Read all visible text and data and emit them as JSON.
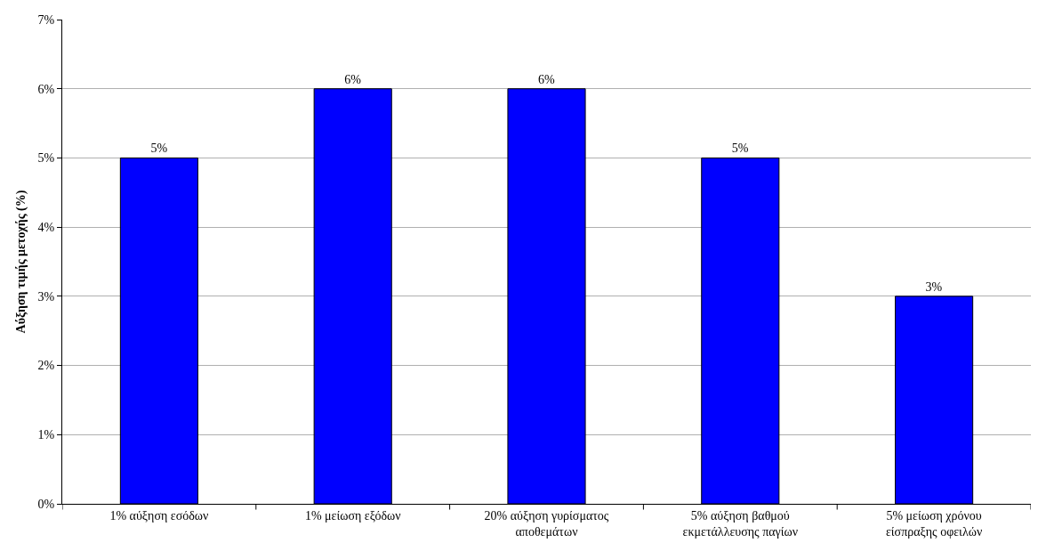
{
  "chart_data": {
    "type": "bar",
    "ylabel": "Αύξηση τιμής μετοχής (%)",
    "categories": [
      "1% αύξηση εσόδων",
      "1% μείωση εξόδων",
      "20% αύξηση γυρίσματος αποθεμάτων",
      "5% αύξηση βαθμού εκμετάλλευσης παγίων",
      "5% μείωση χρόνου είσπραξης οφειλών"
    ],
    "values": [
      5,
      6,
      6,
      5,
      3
    ],
    "value_labels": [
      "5%",
      "6%",
      "6%",
      "5%",
      "3%"
    ],
    "color": "#0000ff",
    "ylim": [
      0,
      7
    ],
    "yticks": [
      {
        "value": 0,
        "label": "0%"
      },
      {
        "value": 1,
        "label": "1%"
      },
      {
        "value": 2,
        "label": "2%"
      },
      {
        "value": 3,
        "label": "3%"
      },
      {
        "value": 4,
        "label": "4%"
      },
      {
        "value": 5,
        "label": "5%"
      },
      {
        "value": 6,
        "label": "6%"
      },
      {
        "value": 7,
        "label": "7%"
      }
    ],
    "grid": "y"
  }
}
